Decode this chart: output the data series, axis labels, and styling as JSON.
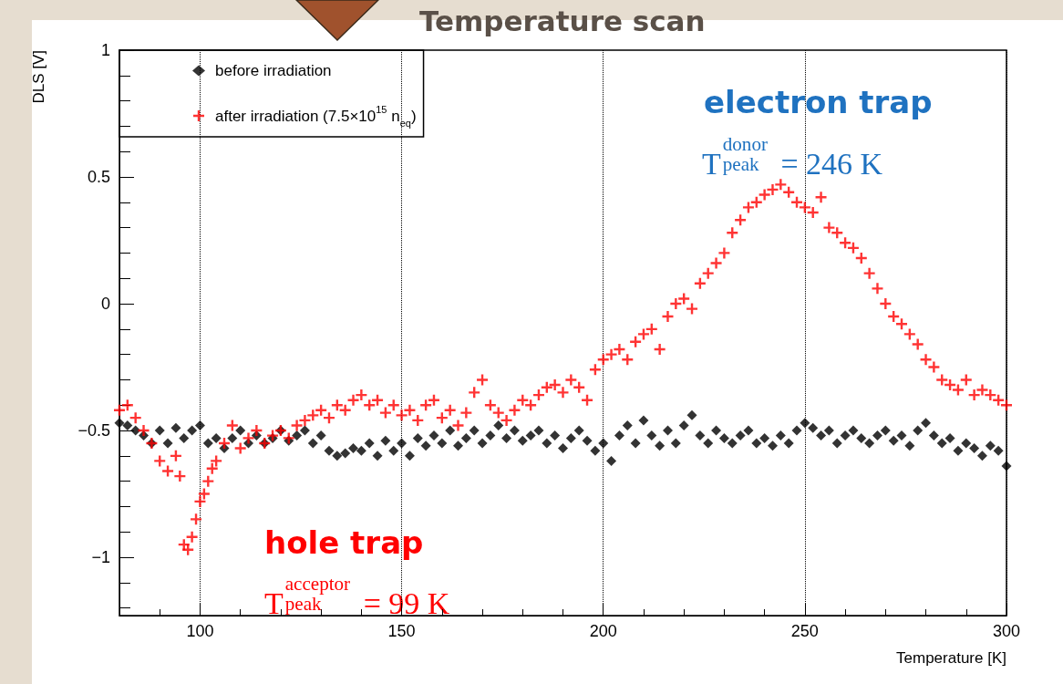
{
  "chart_data": {
    "type": "scatter",
    "title": "Temperature scan",
    "xlabel": "Temperature [K]",
    "ylabel": "DLS [V]",
    "xlim": [
      80,
      300
    ],
    "xticks": [
      100,
      150,
      200,
      250,
      300
    ],
    "ylim": [
      -1.23,
      1
    ],
    "yticks": [
      {
        "value": -1,
        "label": "−1"
      },
      {
        "value": -0.5,
        "label": "−0.5"
      },
      0,
      0.5,
      1
    ],
    "grid": "x",
    "legend": "top left",
    "annotations": [
      "electron trap",
      "T$_{peak}$$^{donor}$ = 246 K",
      "hole trap",
      "T$_{peak}$$^{acceptor}$ = 99 K"
    ],
    "series": [
      {
        "name": "before irradiation",
        "color": "#000000",
        "marker": "diamond",
        "x": [
          80,
          82,
          84,
          86,
          88,
          90,
          92,
          94,
          96,
          98,
          100,
          102,
          104,
          106,
          108,
          110,
          112,
          114,
          116,
          118,
          120,
          122,
          124,
          126,
          128,
          130,
          132,
          134,
          136,
          138,
          140,
          142,
          144,
          146,
          148,
          150,
          152,
          154,
          156,
          158,
          160,
          162,
          164,
          166,
          168,
          170,
          172,
          174,
          176,
          178,
          180,
          182,
          184,
          186,
          188,
          190,
          192,
          194,
          196,
          198,
          200,
          202,
          204,
          206,
          208,
          210,
          212,
          214,
          216,
          218,
          220,
          222,
          224,
          226,
          228,
          230,
          232,
          234,
          236,
          238,
          240,
          242,
          244,
          246,
          248,
          250,
          252,
          254,
          256,
          258,
          260,
          262,
          264,
          266,
          268,
          270,
          272,
          274,
          276,
          278,
          280,
          282,
          284,
          286,
          288,
          290,
          292,
          294,
          296,
          298,
          300
        ],
        "values": [
          -0.47,
          -0.48,
          -0.5,
          -0.52,
          -0.55,
          -0.5,
          -0.55,
          -0.49,
          -0.53,
          -0.5,
          -0.48,
          -0.55,
          -0.53,
          -0.57,
          -0.53,
          -0.5,
          -0.55,
          -0.52,
          -0.55,
          -0.53,
          -0.5,
          -0.54,
          -0.52,
          -0.5,
          -0.55,
          -0.52,
          -0.58,
          -0.6,
          -0.59,
          -0.57,
          -0.58,
          -0.55,
          -0.6,
          -0.54,
          -0.58,
          -0.55,
          -0.6,
          -0.53,
          -0.56,
          -0.52,
          -0.55,
          -0.5,
          -0.56,
          -0.53,
          -0.5,
          -0.55,
          -0.52,
          -0.48,
          -0.53,
          -0.5,
          -0.54,
          -0.52,
          -0.5,
          -0.55,
          -0.52,
          -0.57,
          -0.53,
          -0.5,
          -0.54,
          -0.58,
          -0.55,
          -0.62,
          -0.52,
          -0.48,
          -0.55,
          -0.46,
          -0.52,
          -0.56,
          -0.5,
          -0.55,
          -0.48,
          -0.44,
          -0.52,
          -0.55,
          -0.5,
          -0.53,
          -0.55,
          -0.52,
          -0.5,
          -0.55,
          -0.53,
          -0.56,
          -0.52,
          -0.55,
          -0.5,
          -0.47,
          -0.49,
          -0.52,
          -0.5,
          -0.55,
          -0.52,
          -0.5,
          -0.53,
          -0.55,
          -0.52,
          -0.5,
          -0.54,
          -0.52,
          -0.56,
          -0.5,
          -0.47,
          -0.52,
          -0.55,
          -0.53,
          -0.58,
          -0.55,
          -0.57,
          -0.6,
          -0.56,
          -0.58,
          -0.64
        ]
      },
      {
        "name": "after irradiation (7.5×10$^{15}$ n$_{eq}$)",
        "color": "#ff0000",
        "marker": "cross",
        "x": [
          80,
          82,
          84,
          86,
          88,
          90,
          92,
          94,
          95,
          96,
          97,
          98,
          99,
          100,
          101,
          102,
          103,
          104,
          106,
          108,
          110,
          112,
          114,
          116,
          118,
          120,
          122,
          124,
          126,
          128,
          130,
          132,
          134,
          136,
          138,
          140,
          142,
          144,
          146,
          148,
          150,
          152,
          154,
          156,
          158,
          160,
          162,
          164,
          166,
          168,
          170,
          172,
          174,
          176,
          178,
          180,
          182,
          184,
          186,
          188,
          190,
          192,
          194,
          196,
          198,
          200,
          202,
          204,
          206,
          208,
          210,
          212,
          214,
          216,
          218,
          220,
          222,
          224,
          226,
          228,
          230,
          232,
          234,
          236,
          238,
          240,
          242,
          244,
          246,
          248,
          250,
          252,
          254,
          256,
          258,
          260,
          262,
          264,
          266,
          268,
          270,
          272,
          274,
          276,
          278,
          280,
          282,
          284,
          286,
          288,
          290,
          292,
          294,
          296,
          298,
          300
        ],
        "values": [
          -0.42,
          -0.4,
          -0.45,
          -0.5,
          -0.55,
          -0.62,
          -0.66,
          -0.6,
          -0.68,
          -0.95,
          -0.97,
          -0.92,
          -0.85,
          -0.78,
          -0.75,
          -0.7,
          -0.65,
          -0.62,
          -0.55,
          -0.48,
          -0.57,
          -0.53,
          -0.5,
          -0.55,
          -0.52,
          -0.5,
          -0.53,
          -0.48,
          -0.46,
          -0.44,
          -0.42,
          -0.45,
          -0.4,
          -0.42,
          -0.38,
          -0.36,
          -0.4,
          -0.38,
          -0.43,
          -0.4,
          -0.44,
          -0.42,
          -0.46,
          -0.4,
          -0.38,
          -0.45,
          -0.42,
          -0.48,
          -0.43,
          -0.35,
          -0.3,
          -0.4,
          -0.43,
          -0.46,
          -0.42,
          -0.38,
          -0.4,
          -0.36,
          -0.33,
          -0.32,
          -0.35,
          -0.3,
          -0.33,
          -0.38,
          -0.26,
          -0.22,
          -0.2,
          -0.18,
          -0.22,
          -0.15,
          -0.12,
          -0.1,
          -0.18,
          -0.05,
          0.0,
          0.02,
          -0.02,
          0.08,
          0.12,
          0.16,
          0.2,
          0.28,
          0.33,
          0.38,
          0.4,
          0.43,
          0.45,
          0.47,
          0.44,
          0.4,
          0.38,
          0.36,
          0.42,
          0.3,
          0.28,
          0.24,
          0.22,
          0.18,
          0.12,
          0.06,
          0.0,
          -0.05,
          -0.08,
          -0.12,
          -0.16,
          -0.22,
          -0.25,
          -0.3,
          -0.32,
          -0.34,
          -0.3,
          -0.36,
          -0.34,
          -0.36,
          -0.38,
          -0.4
        ]
      }
    ]
  }
}
